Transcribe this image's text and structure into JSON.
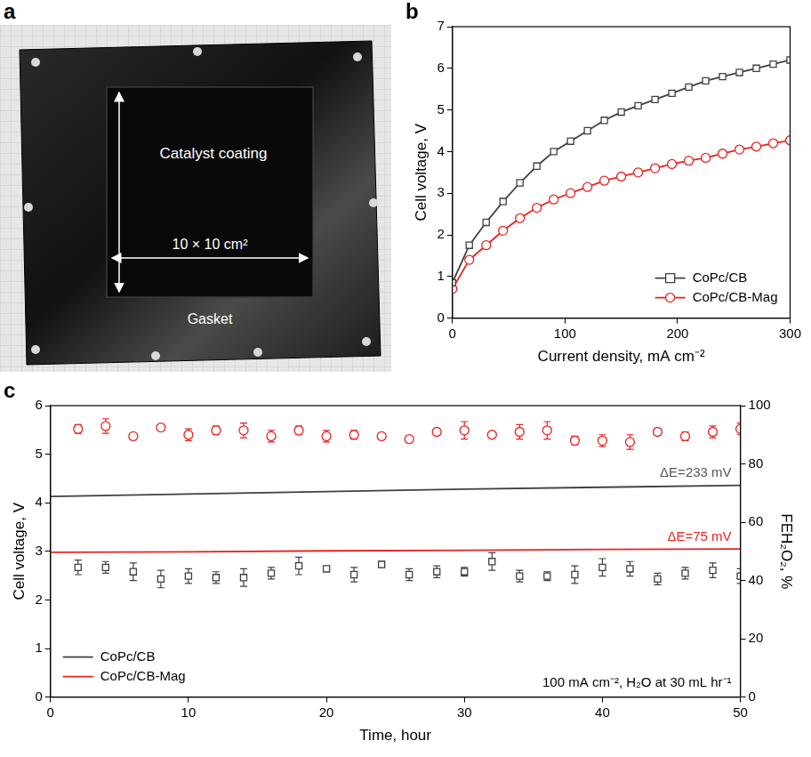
{
  "photo": {
    "panel_label": "a",
    "labels": {
      "coating": "Catalyst coating",
      "size": "10 × 10 cm²",
      "gasket": "Gasket"
    }
  },
  "chart_data": [
    {
      "panel_label": "b",
      "type": "line",
      "x_label": "Current density, mA cm⁻²",
      "y_label": "Cell voltage, V",
      "x": [
        0,
        15,
        30,
        45,
        60,
        75,
        90,
        105,
        120,
        135,
        150,
        165,
        180,
        195,
        210,
        225,
        240,
        255,
        270,
        285,
        300
      ],
      "xlim": [
        0,
        300
      ],
      "xticks": [
        0,
        100,
        200,
        300
      ],
      "ylim": [
        0,
        7
      ],
      "yticks": [
        0,
        1,
        2,
        3,
        4,
        5,
        6,
        7
      ],
      "grid": false,
      "legend": "lower right",
      "series": [
        {
          "name": "CoPc/CB",
          "color": "#404040",
          "marker": "square",
          "line_style": "solid",
          "values": [
            0.85,
            1.75,
            2.3,
            2.8,
            3.25,
            3.65,
            4.0,
            4.25,
            4.5,
            4.75,
            4.95,
            5.1,
            5.25,
            5.4,
            5.55,
            5.7,
            5.8,
            5.9,
            6.0,
            6.1,
            6.2
          ]
        },
        {
          "name": "CoPc/CB-Mag",
          "color": "#e8231f",
          "marker": "circle",
          "line_style": "solid",
          "values": [
            0.7,
            1.4,
            1.75,
            2.1,
            2.4,
            2.65,
            2.85,
            3.0,
            3.15,
            3.3,
            3.4,
            3.5,
            3.6,
            3.7,
            3.78,
            3.85,
            3.95,
            4.05,
            4.12,
            4.2,
            4.27
          ]
        }
      ]
    },
    {
      "panel_label": "c",
      "type": "line",
      "x_label": "Time, hour",
      "y_label": "Cell voltage, V",
      "y2_label": "FEH₂O₂, %",
      "xlim": [
        0,
        50
      ],
      "xticks": [
        0,
        10,
        20,
        30,
        40,
        50
      ],
      "ylim": [
        0,
        6
      ],
      "yticks": [
        0,
        1,
        2,
        3,
        4,
        5,
        6
      ],
      "y2lim": [
        0,
        100
      ],
      "y2ticks": [
        0,
        20,
        40,
        60,
        80,
        100
      ],
      "grid": false,
      "legend": "lower left",
      "annotations": [
        {
          "text": "ΔE=233 mV",
          "color": "#555555"
        },
        {
          "text": "ΔE=75 mV",
          "color": "#e8231f"
        },
        {
          "text": "100 mA cm⁻², H₂O at 30 mL hr⁻¹",
          "color": "#000000"
        }
      ],
      "series": [
        {
          "name": "CoPc/CB",
          "color": "#404040",
          "marker": "none",
          "line_style": "solid",
          "axis": "y",
          "x": [
            0,
            10,
            20,
            30,
            40,
            50
          ],
          "values": [
            4.13,
            4.18,
            4.23,
            4.28,
            4.32,
            4.36
          ]
        },
        {
          "name": "CoPc/CB-Mag",
          "color": "#e8231f",
          "marker": "none",
          "line_style": "solid",
          "axis": "y",
          "x": [
            0,
            10,
            20,
            30,
            40,
            50
          ],
          "values": [
            2.98,
            2.99,
            3.01,
            3.02,
            3.04,
            3.05
          ]
        },
        {
          "name": "CoPc/CB",
          "color": "#404040",
          "marker": "square",
          "line_style": "none",
          "axis": "y2",
          "x": [
            2,
            4,
            6,
            8,
            10,
            12,
            14,
            16,
            18,
            20,
            22,
            24,
            26,
            28,
            30,
            32,
            34,
            36,
            38,
            40,
            42,
            44,
            46,
            48,
            50
          ],
          "values": [
            44.5,
            44.5,
            43,
            40.5,
            41.5,
            41,
            41,
            42.5,
            45,
            44,
            42,
            45.5,
            42,
            43,
            43,
            46.5,
            41.5,
            41.5,
            42,
            44.5,
            44,
            40.5,
            42.5,
            43.5,
            41.5
          ],
          "errors": [
            2.5,
            2,
            3,
            3,
            2.5,
            2,
            3,
            2,
            3,
            0.5,
            2.5,
            1,
            2,
            2,
            1.5,
            3,
            2,
            1.5,
            3,
            3,
            2.5,
            2,
            2,
            2.5,
            2.5
          ]
        },
        {
          "name": "CoPc/CB-Mag",
          "color": "#e8231f",
          "marker": "circle",
          "line_style": "none",
          "axis": "y2",
          "x": [
            2,
            4,
            6,
            8,
            10,
            12,
            14,
            16,
            18,
            20,
            22,
            24,
            26,
            28,
            30,
            32,
            34,
            36,
            38,
            40,
            42,
            44,
            46,
            48,
            50
          ],
          "values": [
            92,
            93,
            89.5,
            92.5,
            90,
            91.5,
            91.5,
            89.5,
            91.5,
            89.5,
            90,
            89.5,
            88.5,
            91,
            91.5,
            90,
            91,
            91.5,
            88,
            88,
            87.5,
            91,
            89.5,
            91,
            92
          ],
          "errors": [
            1.5,
            2.5,
            1,
            1,
            2,
            1.5,
            2.5,
            2,
            1.5,
            2,
            1.5,
            1,
            1,
            1,
            3,
            1,
            2.5,
            3,
            1.5,
            2,
            2.5,
            1,
            1.5,
            2,
            2
          ]
        }
      ]
    }
  ]
}
